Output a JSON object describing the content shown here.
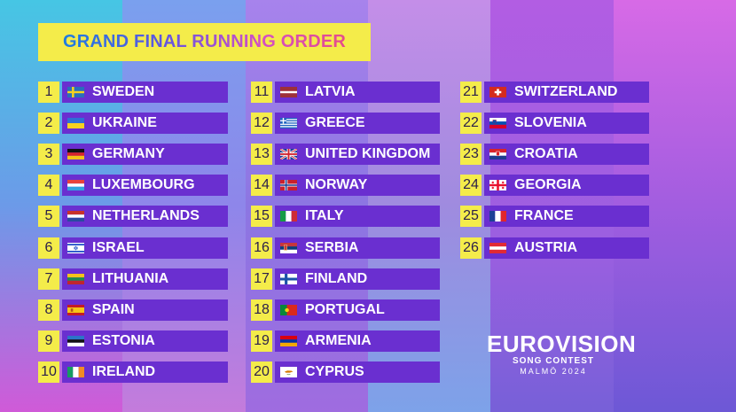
{
  "title": "GRAND FINAL RUNNING ORDER",
  "entries": [
    {
      "num": "1",
      "country": "SWEDEN",
      "flag": "sweden"
    },
    {
      "num": "2",
      "country": "UKRAINE",
      "flag": "ukraine"
    },
    {
      "num": "3",
      "country": "GERMANY",
      "flag": "germany"
    },
    {
      "num": "4",
      "country": "LUXEMBOURG",
      "flag": "luxembourg"
    },
    {
      "num": "5",
      "country": "NETHERLANDS",
      "flag": "netherlands"
    },
    {
      "num": "6",
      "country": "ISRAEL",
      "flag": "israel"
    },
    {
      "num": "7",
      "country": "LITHUANIA",
      "flag": "lithuania"
    },
    {
      "num": "8",
      "country": "SPAIN",
      "flag": "spain"
    },
    {
      "num": "9",
      "country": "ESTONIA",
      "flag": "estonia"
    },
    {
      "num": "10",
      "country": "IRELAND",
      "flag": "ireland"
    },
    {
      "num": "11",
      "country": "LATVIA",
      "flag": "latvia"
    },
    {
      "num": "12",
      "country": "GREECE",
      "flag": "greece"
    },
    {
      "num": "13",
      "country": "UNITED KINGDOM",
      "flag": "united-kingdom"
    },
    {
      "num": "14",
      "country": "NORWAY",
      "flag": "norway"
    },
    {
      "num": "15",
      "country": "ITALY",
      "flag": "italy"
    },
    {
      "num": "16",
      "country": "SERBIA",
      "flag": "serbia"
    },
    {
      "num": "17",
      "country": "FINLAND",
      "flag": "finland"
    },
    {
      "num": "18",
      "country": "PORTUGAL",
      "flag": "portugal"
    },
    {
      "num": "19",
      "country": "ARMENIA",
      "flag": "armenia"
    },
    {
      "num": "20",
      "country": "CYPRUS",
      "flag": "cyprus"
    },
    {
      "num": "21",
      "country": "SWITZERLAND",
      "flag": "switzerland"
    },
    {
      "num": "22",
      "country": "SLOVENIA",
      "flag": "slovenia"
    },
    {
      "num": "23",
      "country": "CROATIA",
      "flag": "croatia"
    },
    {
      "num": "24",
      "country": "GEORGIA",
      "flag": "georgia"
    },
    {
      "num": "25",
      "country": "FRANCE",
      "flag": "france"
    },
    {
      "num": "26",
      "country": "AUSTRIA",
      "flag": "austria"
    }
  ],
  "logo": {
    "main": "EUROVISION",
    "sub": "SONG CONTEST",
    "city": "MALMÖ 2024"
  },
  "colors": {
    "accent_yellow": "#f4ec4a",
    "bar_purple": "#6a2fd0"
  }
}
